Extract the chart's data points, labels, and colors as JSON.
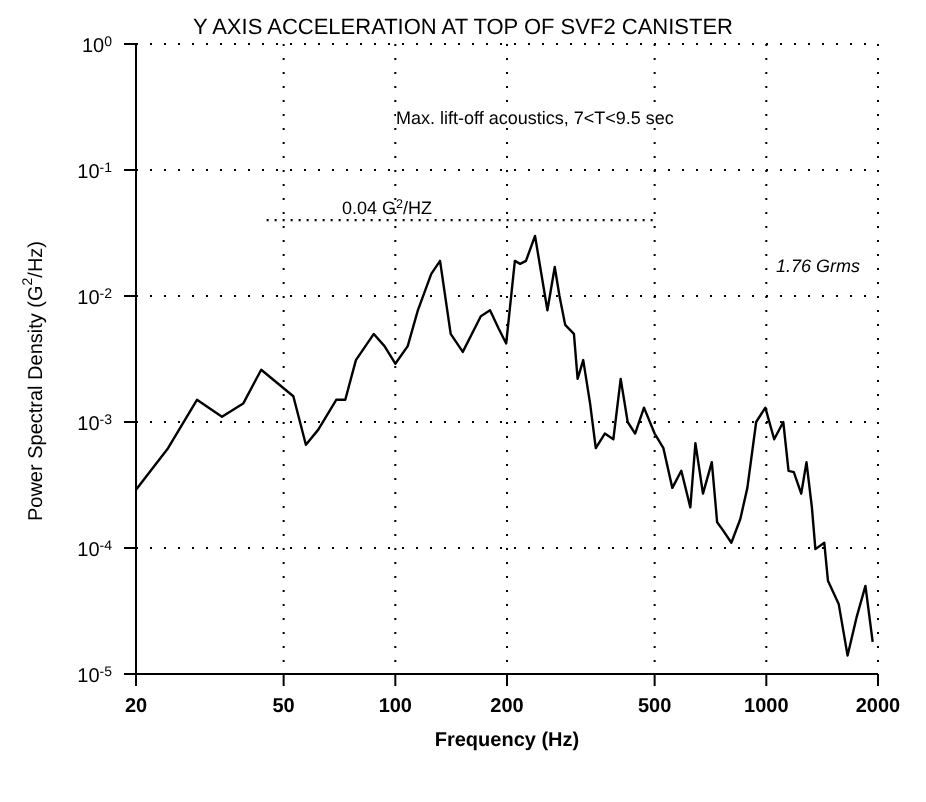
{
  "chart_data": {
    "type": "line",
    "title": "Y AXIS ACCELERATION AT TOP OF SVF2 CANISTER",
    "xlabel": "Frequency (Hz)",
    "ylabel": "Power Spectral Density (G$^{2}$/Hz)",
    "log": "xy",
    "grid": true,
    "marker": "none",
    "line_style": "solid",
    "xlim": [
      20,
      2000
    ],
    "xticks": [
      20,
      50,
      100,
      200,
      500,
      1000,
      2000
    ],
    "ylim": [
      1e-05,
      1
    ],
    "yticks": [
      {
        "value": 1e-05,
        "label": "10$^{-5}$"
      },
      {
        "value": 0.0001,
        "label": "10$^{-4}$"
      },
      {
        "value": 0.001,
        "label": "10$^{-3}$"
      },
      {
        "value": 0.01,
        "label": "10$^{-2}$"
      },
      {
        "value": 0.1,
        "label": "10$^{-1}$"
      },
      {
        "value": 1,
        "label": "10$^{0}$"
      }
    ],
    "series": [
      {
        "color": "#000000",
        "x": [
          20,
          24.4,
          29.2,
          34.1,
          38.9,
          43.5,
          53.1,
          57.4,
          62,
          69.3,
          73.3,
          78.3,
          87.5,
          93.5,
          100,
          108,
          115,
          125,
          132,
          141,
          152,
          170,
          180,
          190,
          199,
          210,
          217,
          225,
          238,
          257,
          269,
          277,
          287,
          303,
          310,
          321,
          335,
          347,
          367,
          387,
          405,
          423,
          443,
          468,
          500,
          528,
          558,
          590,
          624,
          644,
          675,
          713,
          737,
          762,
          805,
          851,
          889,
          939,
          994,
          1050,
          1111,
          1148,
          1186,
          1242,
          1283,
          1327,
          1356,
          1433,
          1466,
          1567,
          1656,
          1750,
          1850,
          1935
        ],
        "values": [
          0.00029,
          0.00062,
          0.0015,
          0.0011,
          0.0014,
          0.0026,
          0.0016,
          0.00066,
          0.00087,
          0.0015,
          0.0015,
          0.0031,
          0.005,
          0.004,
          0.0029,
          0.004,
          0.0077,
          0.015,
          0.019,
          0.005,
          0.0036,
          0.0069,
          0.0077,
          0.0055,
          0.0042,
          0.019,
          0.018,
          0.019,
          0.03,
          0.0077,
          0.017,
          0.01,
          0.0059,
          0.005,
          0.0022,
          0.0031,
          0.0014,
          0.00062,
          0.00081,
          0.00073,
          0.0022,
          0.001,
          0.00081,
          0.0013,
          0.00081,
          0.00062,
          0.0003,
          0.00041,
          0.00021,
          0.00068,
          0.00027,
          0.00048,
          0.00016,
          0.00014,
          0.00011,
          0.00017,
          0.0003,
          0.001,
          0.0013,
          0.00073,
          0.001,
          0.00041,
          0.0004,
          0.00027,
          0.00048,
          0.00021,
          9.8e-05,
          0.00011,
          5.5e-05,
          3.6e-05,
          1.4e-05,
          2.8e-05,
          5e-05,
          1.8e-05
        ]
      },
      {
        "color": "#000000",
        "line_style": "dotted",
        "x": [
          45,
          500
        ],
        "values": [
          0.04,
          0.04
        ]
      }
    ],
    "annotations": [
      "Max. lift-off acoustics, 7<T<9.5 sec",
      {
        "text": "0.04 G$^{2}$/HZ",
        "x": 95,
        "y": 0.04
      },
      "1.76 Grms"
    ]
  }
}
